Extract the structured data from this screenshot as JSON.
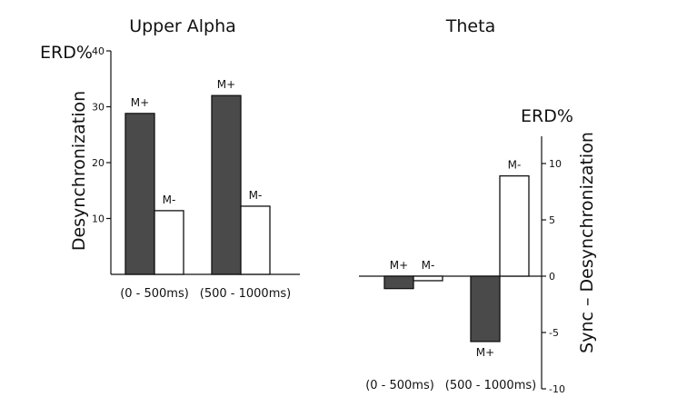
{
  "chart_data": [
    {
      "type": "bar",
      "title": "Upper Alpha",
      "ylabel": "Desynchronization",
      "unit_label": "ERD%",
      "ylim": [
        0,
        40
      ],
      "yticks": [
        10,
        20,
        30,
        40
      ],
      "categories": [
        "(0 - 500ms)",
        "(500 - 1000ms)"
      ],
      "series": [
        {
          "name": "M+",
          "values": [
            28.8,
            32.0
          ],
          "color": "#4a4a4a"
        },
        {
          "name": "M-",
          "values": [
            11.4,
            12.2
          ],
          "color": "#ffffff"
        }
      ],
      "bar_labels": [
        "M+",
        "M-"
      ]
    },
    {
      "type": "bar",
      "title": "Theta",
      "ylabel": "Sync – Desynchronization",
      "unit_label": "ERD%",
      "ylim": [
        -10,
        12
      ],
      "yticks": [
        -10,
        -5,
        0,
        5,
        10
      ],
      "categories": [
        "(0 - 500ms)",
        "(500 - 1000ms)"
      ],
      "series": [
        {
          "name": "M+",
          "values": [
            -1.1,
            -5.8
          ],
          "color": "#4a4a4a"
        },
        {
          "name": "M-",
          "values": [
            -0.4,
            8.9
          ],
          "color": "#ffffff"
        }
      ],
      "bar_labels": [
        "M+",
        "M-"
      ]
    }
  ]
}
